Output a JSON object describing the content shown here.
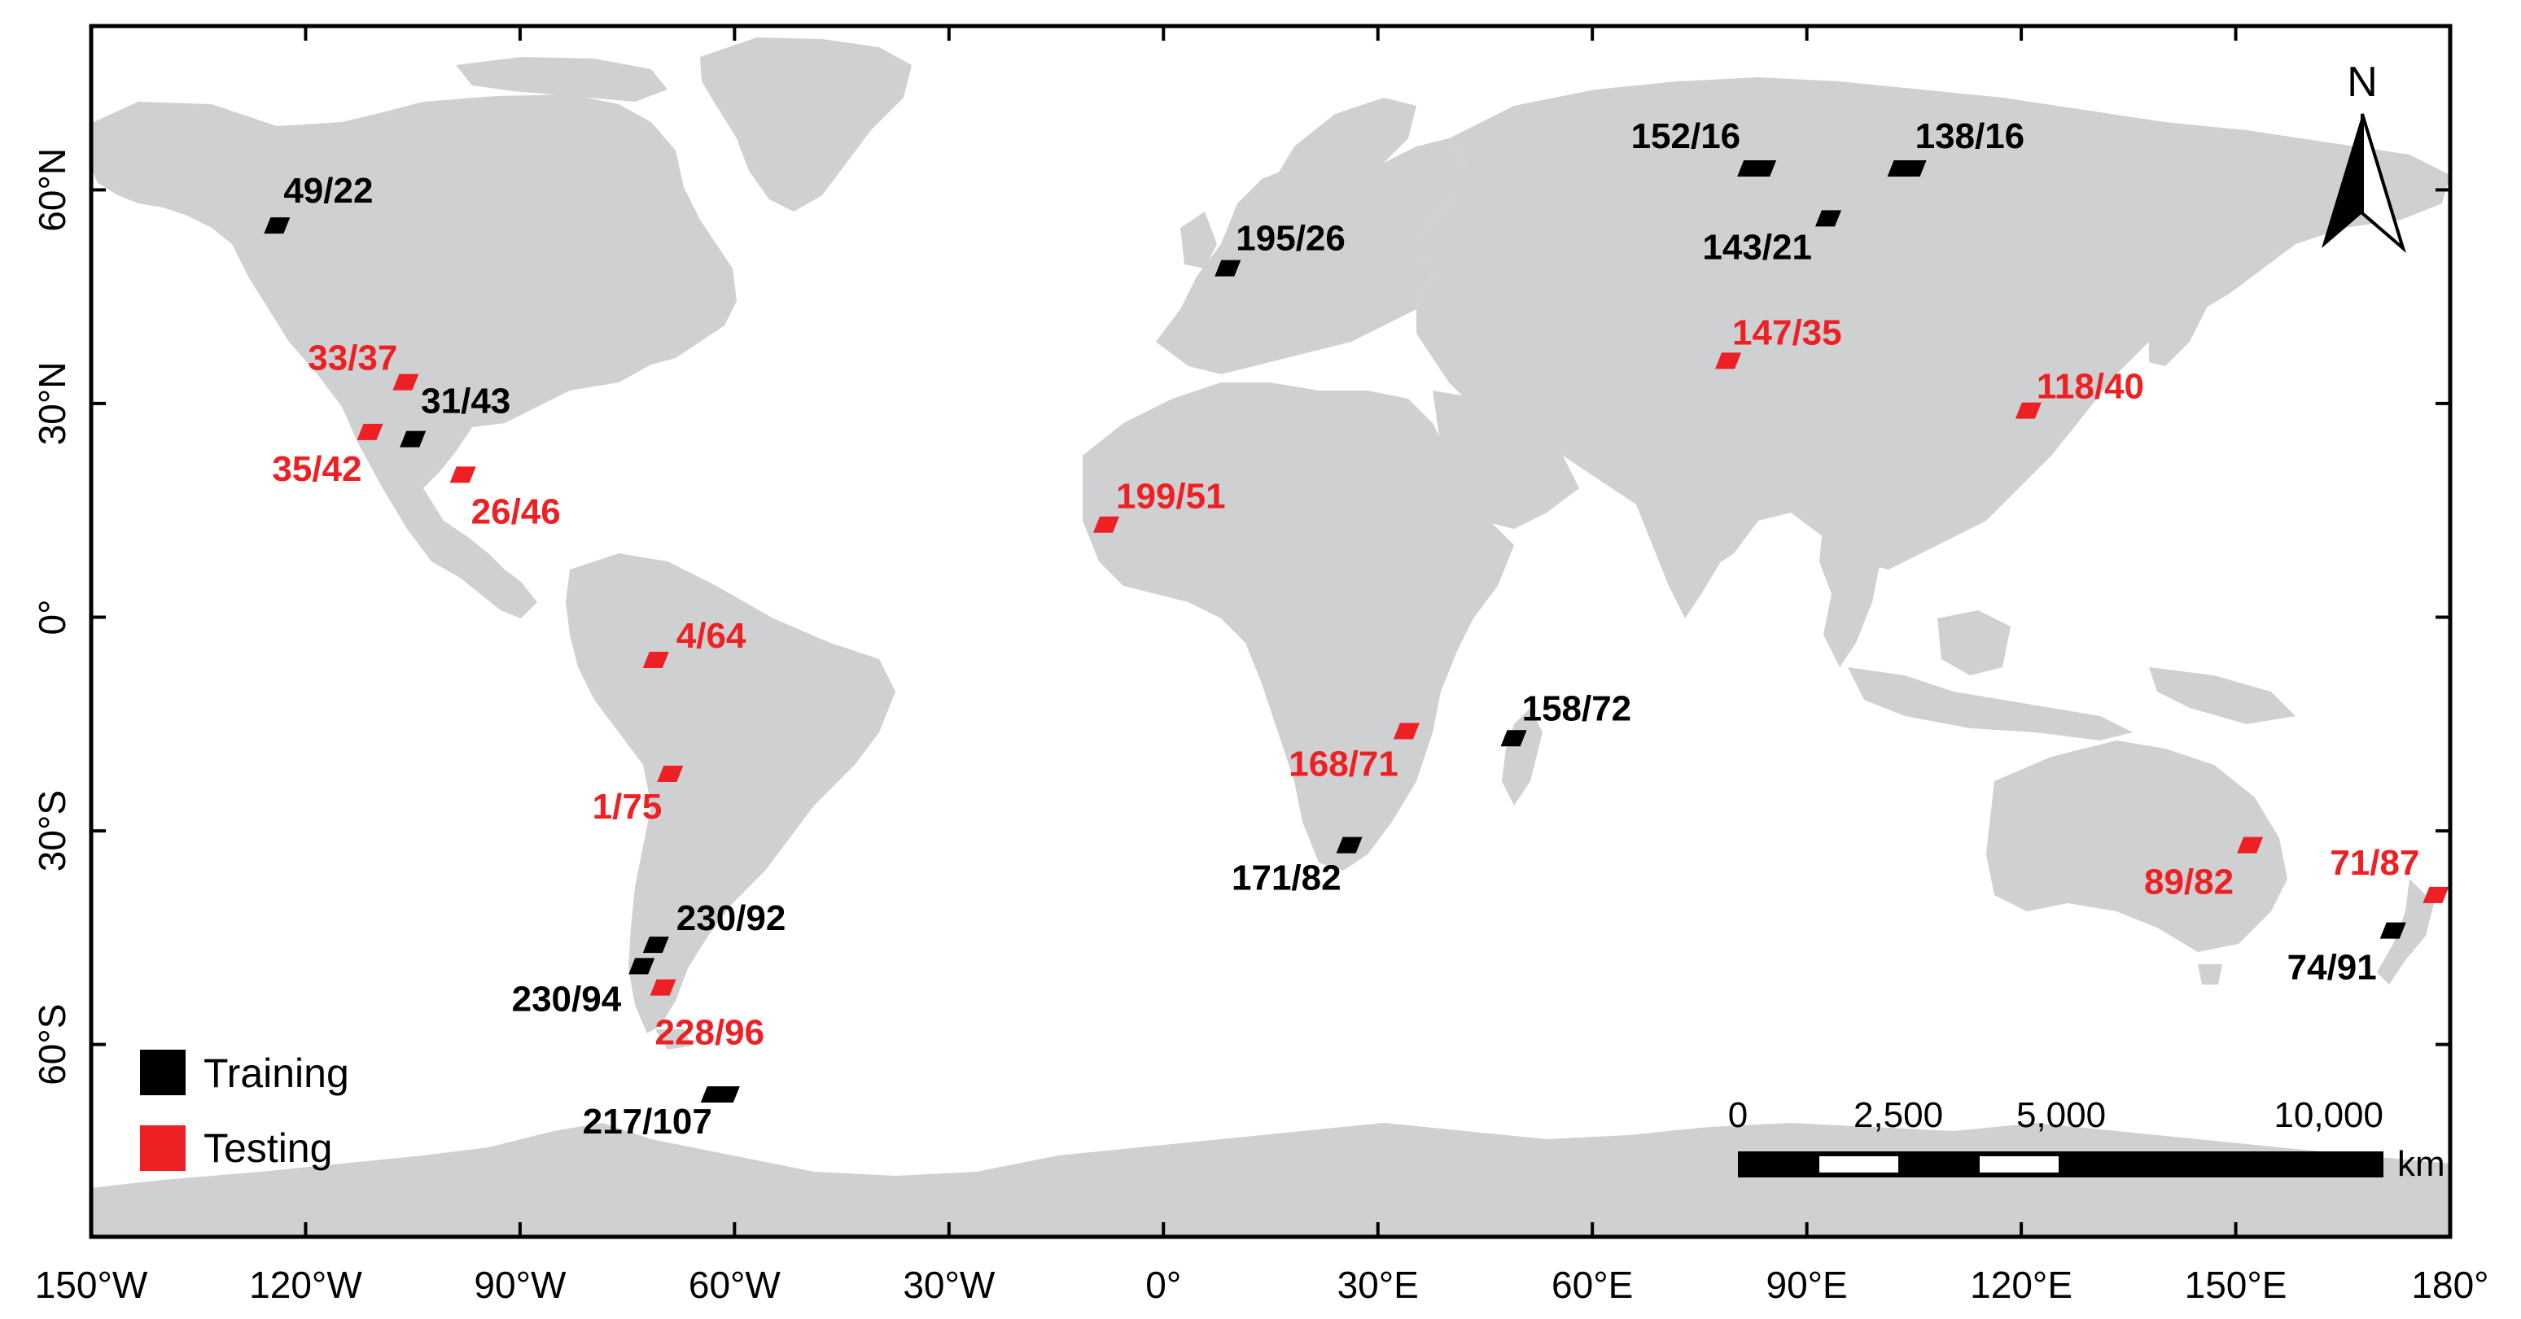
{
  "colors": {
    "land": "#cfd0d2",
    "ocean": "#ffffff",
    "training": "#000000",
    "testing": "#ed2024",
    "frame": "#000000"
  },
  "axes": {
    "x_ticks": [
      {
        "lon": -150,
        "label": "150°W"
      },
      {
        "lon": -120,
        "label": "120°W"
      },
      {
        "lon": -90,
        "label": "90°W"
      },
      {
        "lon": -60,
        "label": "60°W"
      },
      {
        "lon": -30,
        "label": "30°W"
      },
      {
        "lon": 0,
        "label": "0°"
      },
      {
        "lon": 30,
        "label": "30°E"
      },
      {
        "lon": 60,
        "label": "60°E"
      },
      {
        "lon": 90,
        "label": "90°E"
      },
      {
        "lon": 120,
        "label": "120°E"
      },
      {
        "lon": 150,
        "label": "150°E"
      },
      {
        "lon": 180,
        "label": "180°"
      }
    ],
    "y_ticks": [
      {
        "lat": 60,
        "label": "60°N"
      },
      {
        "lat": 30,
        "label": "30°N"
      },
      {
        "lat": 0,
        "label": "0°"
      },
      {
        "lat": -30,
        "label": "30°S"
      },
      {
        "lat": -60,
        "label": "60°S"
      }
    ],
    "lon_range": [
      -150,
      180
    ],
    "lat_range": [
      -87,
      83
    ]
  },
  "scenes": [
    {
      "label": "49/22",
      "set": "training",
      "lon": -124,
      "lat": 55
    },
    {
      "label": "31/43",
      "set": "training",
      "lon": -105,
      "lat": 25
    },
    {
      "label": "195/26",
      "set": "training",
      "lon": 9,
      "lat": 49
    },
    {
      "label": "152/16",
      "set": "training",
      "lon": 83,
      "lat": 63
    },
    {
      "label": "138/16",
      "set": "training",
      "lon": 104,
      "lat": 63
    },
    {
      "label": "143/21",
      "set": "training",
      "lon": 93,
      "lat": 56
    },
    {
      "label": "158/72",
      "set": "training",
      "lon": 49,
      "lat": -17
    },
    {
      "label": "171/82",
      "set": "training",
      "lon": 26,
      "lat": -32
    },
    {
      "label": "230/92",
      "set": "training",
      "lon": -71,
      "lat": -46
    },
    {
      "label": "230/94",
      "set": "training",
      "lon": -73,
      "lat": -49
    },
    {
      "label": "217/107",
      "set": "training",
      "lon": -62,
      "lat": -67
    },
    {
      "label": "74/91",
      "set": "training",
      "lon": 172,
      "lat": -44
    },
    {
      "label": "33/37",
      "set": "testing",
      "lon": -106,
      "lat": 33
    },
    {
      "label": "35/42",
      "set": "testing",
      "lon": -111,
      "lat": 26
    },
    {
      "label": "26/46",
      "set": "testing",
      "lon": -98,
      "lat": 20
    },
    {
      "label": "4/64",
      "set": "testing",
      "lon": -71,
      "lat": -6
    },
    {
      "label": "1/75",
      "set": "testing",
      "lon": -69,
      "lat": -22
    },
    {
      "label": "228/96",
      "set": "testing",
      "lon": -70,
      "lat": -52
    },
    {
      "label": "199/51",
      "set": "testing",
      "lon": -8,
      "lat": 13
    },
    {
      "label": "168/71",
      "set": "testing",
      "lon": 34,
      "lat": -16
    },
    {
      "label": "147/35",
      "set": "testing",
      "lon": 79,
      "lat": 36
    },
    {
      "label": "118/40",
      "set": "testing",
      "lon": 121,
      "lat": 29
    },
    {
      "label": "89/82",
      "set": "testing",
      "lon": 152,
      "lat": -32
    },
    {
      "label": "71/87",
      "set": "testing",
      "lon": 178,
      "lat": -39
    }
  ],
  "legend": {
    "training_label": "Training",
    "testing_label": "Testing"
  },
  "north_arrow": {
    "label": "N"
  },
  "scale_bar": {
    "labels": [
      "0",
      "2,500",
      "5,000",
      "10,000"
    ],
    "unit": "km"
  }
}
